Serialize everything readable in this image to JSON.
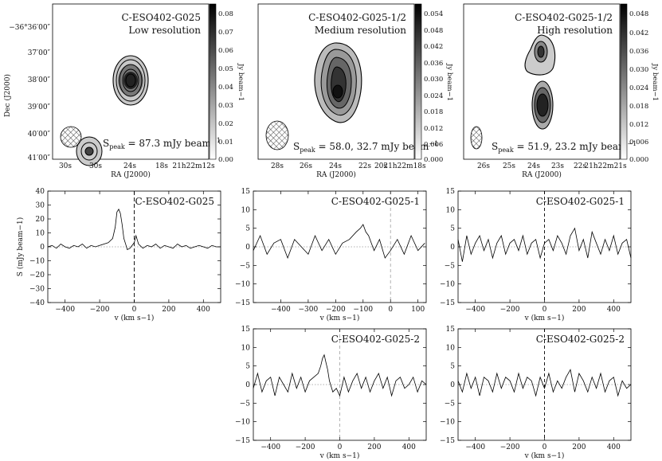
{
  "maps": [
    {
      "name": "C-ESO402-G025",
      "subtitle": "Low resolution",
      "peak_label": "S",
      "peak_sub": "peak",
      "peak_text": " = 87.3 mJy beam",
      "peak_sup": "−1",
      "xticks": [
        "30s",
        "30s",
        "24s",
        "18s",
        "21h22m12s"
      ],
      "xlabel": "RA (J2000)",
      "yticks": [
        "−36°36′00″",
        "37′00″",
        "38′00″",
        "39′00″",
        "40′00″",
        "41′00″"
      ],
      "ylabel": "Dec (J2000)",
      "colorbar_ticks": [
        "0.08",
        "0.07",
        "0.06",
        "0.05",
        "0.04",
        "0.03",
        "0.02",
        "0.01",
        "0.00"
      ],
      "colorbar_label": "Jy beam−1"
    },
    {
      "name": "C-ESO402-G025-1/2",
      "subtitle": "Medium resolution",
      "peak_label": "S",
      "peak_sub": "peak",
      "peak_text": " = 58.0, 32.7 mJy beam",
      "peak_sup": "−1",
      "xticks": [
        "28s",
        "26s",
        "24s",
        "22s",
        "20s",
        "21h22m18s"
      ],
      "xlabel": "RA (J2000)",
      "colorbar_ticks": [
        "0.054",
        "0.048",
        "0.042",
        "0.036",
        "0.030",
        "0.024",
        "0.018",
        "0.012",
        "0.006",
        "0.000"
      ],
      "colorbar_label": "Jy beam−1"
    },
    {
      "name": "C-ESO402-G025-1/2",
      "subtitle": "High resolution",
      "peak_label": "S",
      "peak_sub": "peak",
      "peak_text": " = 51.9, 23.2 mJy beam",
      "peak_sup": "−1",
      "xticks": [
        "26s",
        "25s",
        "24s",
        "23s",
        "22s",
        "21h22m21s"
      ],
      "xlabel": "RA (J2000)",
      "colorbar_ticks": [
        "0.048",
        "0.042",
        "0.036",
        "0.030",
        "0.024",
        "0.018",
        "0.012",
        "0.006",
        "0.000"
      ],
      "colorbar_label": "Jy beam−1"
    }
  ],
  "chart_data": [
    {
      "type": "line",
      "title": "C-ESO402-G025",
      "xlabel": "v (km s−1)",
      "ylabel": "S (mJy beam−1)",
      "xlim": [
        -500,
        500
      ],
      "ylim": [
        -40,
        40
      ],
      "xticks": [
        -400,
        -200,
        0,
        200,
        400
      ],
      "yticks": [
        -40,
        -30,
        -20,
        -10,
        0,
        10,
        20,
        30,
        40
      ],
      "x": [
        -500,
        -475,
        -450,
        -425,
        -400,
        -375,
        -350,
        -325,
        -300,
        -275,
        -250,
        -225,
        -200,
        -175,
        -150,
        -125,
        -110,
        -100,
        -90,
        -80,
        -70,
        -60,
        -50,
        -40,
        -25,
        0,
        10,
        25,
        50,
        75,
        100,
        125,
        150,
        175,
        200,
        225,
        250,
        275,
        300,
        325,
        350,
        375,
        400,
        425,
        450,
        475,
        500
      ],
      "y": [
        0,
        1,
        -1,
        2,
        0,
        -1,
        1,
        0,
        2,
        -1,
        1,
        0,
        1,
        2,
        3,
        6,
        14,
        25,
        27,
        24,
        16,
        6,
        2,
        -2,
        -1,
        3,
        8,
        2,
        -1,
        1,
        0,
        2,
        -1,
        1,
        0,
        -1,
        2,
        0,
        1,
        -1,
        0,
        1,
        0,
        -1,
        1,
        0,
        0
      ]
    },
    {
      "type": "line",
      "title": "C-ESO402-G025-1",
      "xlabel": "v (km s−1)",
      "xlim": [
        -500,
        130
      ],
      "ylim": [
        -15,
        15
      ],
      "xticks": [
        -400,
        -300,
        -200,
        -100,
        0,
        100
      ],
      "yticks": [
        -15,
        -10,
        -5,
        0,
        5,
        10,
        15
      ],
      "x": [
        -500,
        -475,
        -450,
        -425,
        -400,
        -375,
        -350,
        -325,
        -300,
        -275,
        -250,
        -225,
        -200,
        -175,
        -150,
        -125,
        -110,
        -100,
        -90,
        -80,
        -70,
        -60,
        -40,
        -20,
        0,
        25,
        50,
        75,
        100,
        125
      ],
      "y": [
        -1,
        3,
        -2,
        1,
        2,
        -3,
        2,
        0,
        -2,
        3,
        -1,
        2,
        -2,
        1,
        2,
        4,
        5,
        6,
        4,
        3,
        1,
        -1,
        2,
        -3,
        -1,
        2,
        -2,
        3,
        -1,
        1
      ]
    },
    {
      "type": "line",
      "title": "C-ESO402-G025-1",
      "xlabel": "v (km s−1)",
      "xlim": [
        -500,
        500
      ],
      "ylim": [
        -15,
        15
      ],
      "xticks": [
        -400,
        -200,
        0,
        200,
        400
      ],
      "yticks": [
        -15,
        -10,
        -5,
        0,
        5,
        10,
        15
      ],
      "x": [
        -500,
        -475,
        -450,
        -425,
        -400,
        -375,
        -350,
        -325,
        -300,
        -275,
        -250,
        -225,
        -200,
        -175,
        -150,
        -125,
        -100,
        -75,
        -50,
        -25,
        0,
        25,
        50,
        75,
        100,
        125,
        150,
        175,
        200,
        225,
        250,
        275,
        300,
        325,
        350,
        375,
        400,
        425,
        450,
        475,
        500
      ],
      "y": [
        2,
        -4,
        3,
        -2,
        1,
        3,
        -1,
        2,
        -3,
        1,
        3,
        -2,
        1,
        2,
        -1,
        3,
        -2,
        1,
        2,
        -3,
        1,
        2,
        -1,
        3,
        1,
        -2,
        3,
        5,
        -1,
        2,
        -3,
        4,
        1,
        -2,
        2,
        -1,
        3,
        -2,
        1,
        2,
        -3
      ]
    },
    {
      "type": "line",
      "title": "C-ESO402-G025-2",
      "xlabel": "v (km s−1)",
      "xlim": [
        -500,
        500
      ],
      "ylim": [
        -15,
        15
      ],
      "xticks": [
        -400,
        -200,
        0,
        200,
        400
      ],
      "yticks": [
        -15,
        -10,
        -5,
        0,
        5,
        10,
        15
      ],
      "x": [
        -500,
        -475,
        -450,
        -425,
        -400,
        -375,
        -350,
        -325,
        -300,
        -275,
        -250,
        -225,
        -200,
        -175,
        -150,
        -125,
        -110,
        -100,
        -90,
        -80,
        -70,
        -60,
        -40,
        -20,
        0,
        25,
        50,
        75,
        100,
        125,
        150,
        175,
        200,
        225,
        250,
        275,
        300,
        325,
        350,
        375,
        400,
        425,
        450,
        475,
        500
      ],
      "y": [
        -1,
        3,
        -2,
        1,
        2,
        -3,
        2,
        0,
        -2,
        3,
        -1,
        2,
        -2,
        1,
        2,
        3,
        5,
        7,
        8,
        6,
        4,
        1,
        -2,
        -1,
        -3,
        2,
        -2,
        1,
        3,
        -1,
        2,
        -2,
        1,
        3,
        -1,
        2,
        -3,
        1,
        2,
        -1,
        0,
        2,
        -2,
        1,
        0
      ]
    },
    {
      "type": "line",
      "title": "C-ESO402-G025-2",
      "xlabel": "v (km s−1)",
      "xlim": [
        -500,
        500
      ],
      "ylim": [
        -15,
        15
      ],
      "xticks": [
        -400,
        -200,
        0,
        200,
        400
      ],
      "yticks": [
        -15,
        -10,
        -5,
        0,
        5,
        10,
        15
      ],
      "x": [
        -500,
        -475,
        -450,
        -425,
        -400,
        -375,
        -350,
        -325,
        -300,
        -275,
        -250,
        -225,
        -200,
        -175,
        -150,
        -125,
        -100,
        -75,
        -50,
        -25,
        0,
        25,
        50,
        75,
        100,
        125,
        150,
        175,
        200,
        225,
        250,
        275,
        300,
        325,
        350,
        375,
        400,
        425,
        450,
        475,
        500
      ],
      "y": [
        1,
        -2,
        3,
        -1,
        2,
        -3,
        2,
        1,
        -2,
        3,
        -1,
        2,
        1,
        -2,
        3,
        -1,
        2,
        1,
        -3,
        2,
        -1,
        3,
        -2,
        1,
        -1,
        2,
        4,
        -2,
        3,
        1,
        -2,
        2,
        -1,
        3,
        -2,
        1,
        2,
        -3,
        1,
        -1,
        0
      ]
    }
  ]
}
